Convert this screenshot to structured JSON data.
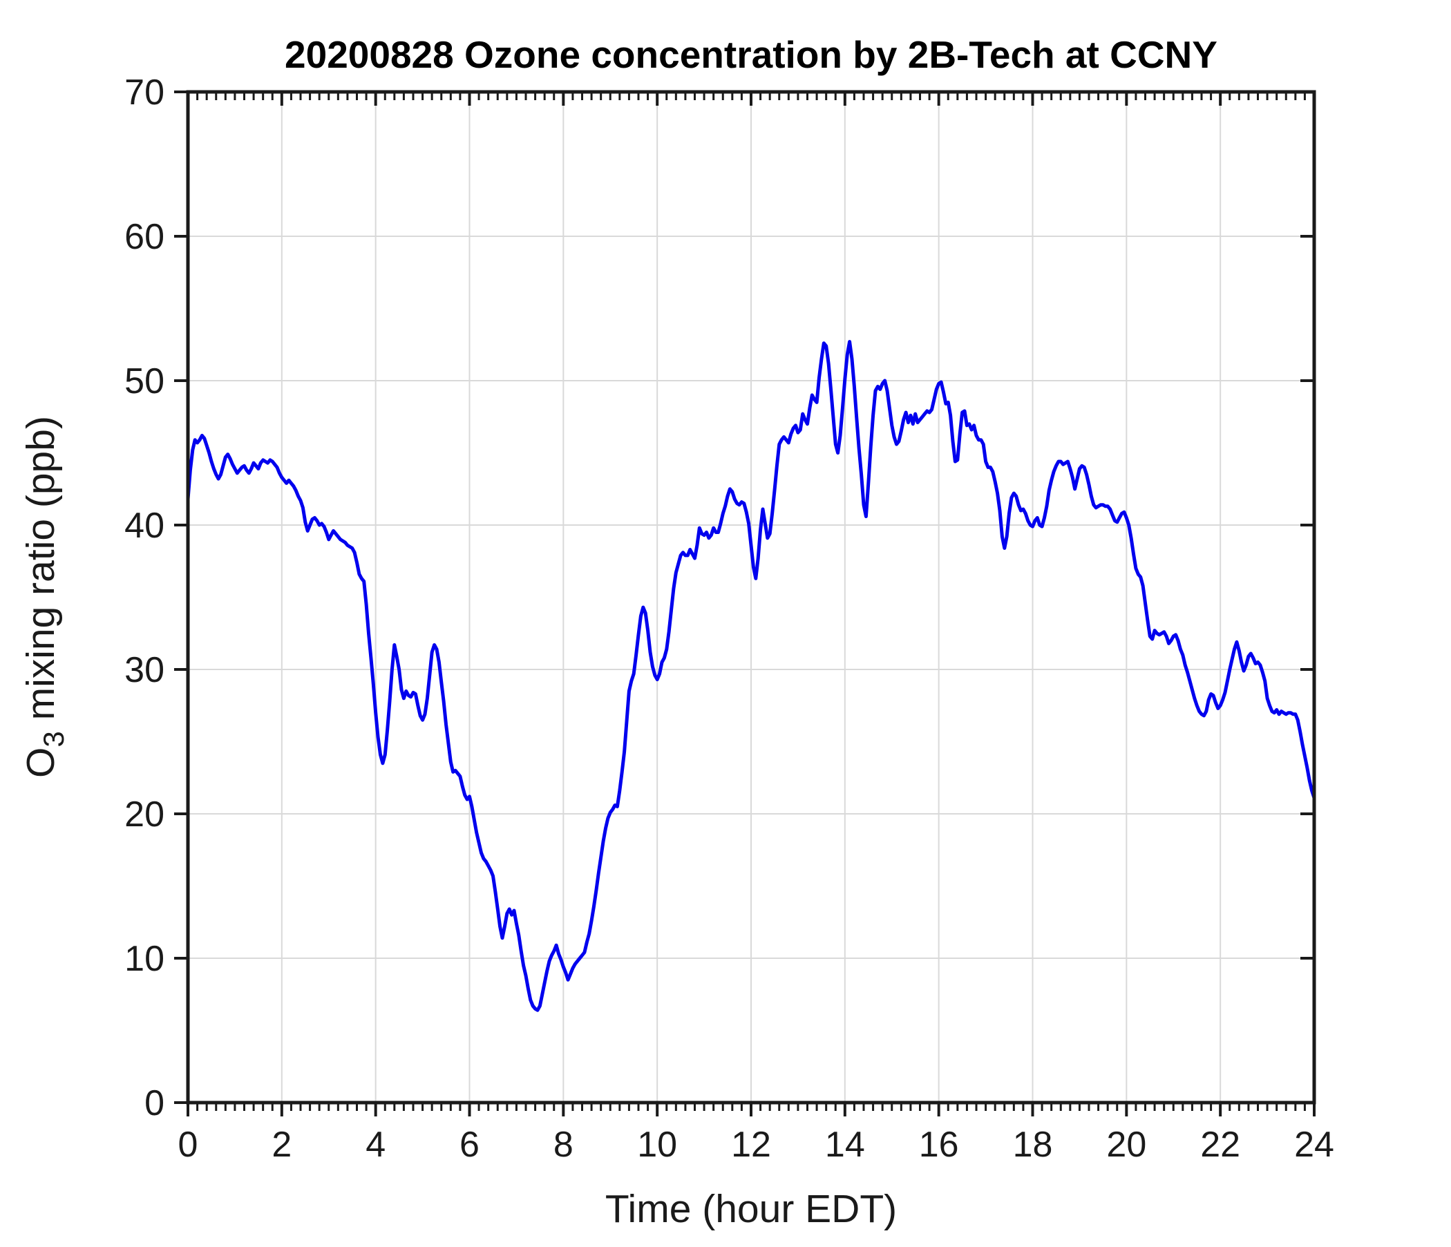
{
  "chart_data": {
    "type": "line",
    "title": "20200828 Ozone concentration by 2B-Tech at CCNY",
    "xlabel": "Time (hour EDT)",
    "ylabel": "O3 mixing ratio (ppb)",
    "ylabel_parts": {
      "base": "O",
      "sub": "3",
      "rest": " mixing ratio (ppb)"
    },
    "xlim": [
      0,
      24
    ],
    "ylim": [
      0,
      70
    ],
    "xticks": [
      0,
      2,
      4,
      6,
      8,
      10,
      12,
      14,
      16,
      18,
      20,
      22,
      24
    ],
    "yticks": [
      0,
      10,
      20,
      30,
      40,
      50,
      60,
      70
    ],
    "x_minor_step": 0.2,
    "grid": true,
    "legend_position": "none",
    "colors": {
      "line": "#0000ee",
      "grid": "#d9d9d9",
      "axis": "#1a1a1a",
      "text": "#1a1a1a",
      "title": "#000000"
    },
    "series": [
      {
        "name": "O3 mixing ratio",
        "t_start": 0,
        "t_step": 0.05,
        "values": [
          41.8,
          43.8,
          45.2,
          45.9,
          45.7,
          45.9,
          46.2,
          46.0,
          45.5,
          45.0,
          44.4,
          43.9,
          43.5,
          43.2,
          43.5,
          44.1,
          44.7,
          44.9,
          44.6,
          44.2,
          43.9,
          43.6,
          43.8,
          44.0,
          44.1,
          43.8,
          43.6,
          43.9,
          44.3,
          44.1,
          43.9,
          44.3,
          44.5,
          44.4,
          44.3,
          44.5,
          44.4,
          44.2,
          44.0,
          43.6,
          43.3,
          43.1,
          42.9,
          43.1,
          42.9,
          42.7,
          42.4,
          42.0,
          41.7,
          41.2,
          40.2,
          39.6,
          40.0,
          40.4,
          40.5,
          40.3,
          40.0,
          40.1,
          39.9,
          39.5,
          39.0,
          39.3,
          39.6,
          39.4,
          39.2,
          39.0,
          38.9,
          38.8,
          38.6,
          38.5,
          38.4,
          38.1,
          37.4,
          36.6,
          36.3,
          36.1,
          34.5,
          32.5,
          30.8,
          29.0,
          27.0,
          25.3,
          24.1,
          23.5,
          24.1,
          25.8,
          27.8,
          30.0,
          31.7,
          30.9,
          30.0,
          28.6,
          28.0,
          28.5,
          28.2,
          28.1,
          28.4,
          28.3,
          27.5,
          26.8,
          26.5,
          26.9,
          28.0,
          29.6,
          31.2,
          31.7,
          31.4,
          30.5,
          29.1,
          27.8,
          26.2,
          24.9,
          23.6,
          22.9,
          23.0,
          22.8,
          22.6,
          21.9,
          21.3,
          21.0,
          21.2,
          20.5,
          19.6,
          18.7,
          18.0,
          17.3,
          16.9,
          16.7,
          16.4,
          16.1,
          15.7,
          14.6,
          13.4,
          12.2,
          11.4,
          12.2,
          13.1,
          13.4,
          13.0,
          13.3,
          12.4,
          11.6,
          10.5,
          9.5,
          8.8,
          7.9,
          7.1,
          6.7,
          6.5,
          6.4,
          6.7,
          7.5,
          8.3,
          9.1,
          9.8,
          10.2,
          10.5,
          10.9,
          10.3,
          9.9,
          9.4,
          9.0,
          8.5,
          8.9,
          9.3,
          9.6,
          9.8,
          10.0,
          10.2,
          10.4,
          11.1,
          11.7,
          12.6,
          13.6,
          14.7,
          15.9,
          17.0,
          18.1,
          19.0,
          19.7,
          20.1,
          20.3,
          20.6,
          20.5,
          21.6,
          22.9,
          24.3,
          26.4,
          28.5,
          29.2,
          29.7,
          31.0,
          32.4,
          33.7,
          34.3,
          33.9,
          32.7,
          31.2,
          30.2,
          29.6,
          29.3,
          29.7,
          30.5,
          30.8,
          31.4,
          32.6,
          34.1,
          35.6,
          36.7,
          37.3,
          37.9,
          38.1,
          37.9,
          37.9,
          38.3,
          38.0,
          37.7,
          38.6,
          39.8,
          39.4,
          39.3,
          39.5,
          39.1,
          39.3,
          39.8,
          39.5,
          39.5,
          40.1,
          40.8,
          41.3,
          42.0,
          42.5,
          42.3,
          41.8,
          41.5,
          41.4,
          41.6,
          41.5,
          40.9,
          40.1,
          38.6,
          37.1,
          36.3,
          37.7,
          39.7,
          41.1,
          40.1,
          39.1,
          39.4,
          40.8,
          42.4,
          44.1,
          45.6,
          45.9,
          46.1,
          45.9,
          45.7,
          46.3,
          46.7,
          46.9,
          46.4,
          46.6,
          47.7,
          47.3,
          47.0,
          48.1,
          49.0,
          48.7,
          48.5,
          50.2,
          51.5,
          52.6,
          52.4,
          51.2,
          49.4,
          47.5,
          45.6,
          45.0,
          46.2,
          48.1,
          50.1,
          51.8,
          52.7,
          51.5,
          49.6,
          47.4,
          45.3,
          43.5,
          41.4,
          40.6,
          42.9,
          45.4,
          47.6,
          49.3,
          49.6,
          49.4,
          49.8,
          50.0,
          49.3,
          48.1,
          46.9,
          46.1,
          45.6,
          45.8,
          46.5,
          47.3,
          47.8,
          47.1,
          47.6,
          47.0,
          47.7,
          47.1,
          47.3,
          47.5,
          47.7,
          47.9,
          47.8,
          48.0,
          48.7,
          49.4,
          49.8,
          49.9,
          49.2,
          48.4,
          48.5,
          47.6,
          45.8,
          44.4,
          44.5,
          46.3,
          47.8,
          47.9,
          46.9,
          47.0,
          46.6,
          46.9,
          46.2,
          45.9,
          45.9,
          45.6,
          44.4,
          44.0,
          44.0,
          43.7,
          43.0,
          42.2,
          41.0,
          39.2,
          38.4,
          39.2,
          40.8,
          41.9,
          42.2,
          42.0,
          41.4,
          41.0,
          41.1,
          40.8,
          40.3,
          40.0,
          39.9,
          40.3,
          40.5,
          40.0,
          39.9,
          40.5,
          41.3,
          42.4,
          43.1,
          43.7,
          44.1,
          44.4,
          44.4,
          44.2,
          44.3,
          44.4,
          43.9,
          43.3,
          42.5,
          43.2,
          43.9,
          44.1,
          44.0,
          43.5,
          42.8,
          42.0,
          41.4,
          41.2,
          41.3,
          41.4,
          41.4,
          41.3,
          41.3,
          41.1,
          40.7,
          40.3,
          40.2,
          40.5,
          40.8,
          40.9,
          40.5,
          40.0,
          39.1,
          38.0,
          37.0,
          36.6,
          36.4,
          35.8,
          34.6,
          33.4,
          32.3,
          32.1,
          32.7,
          32.5,
          32.4,
          32.5,
          32.6,
          32.3,
          31.8,
          32.0,
          32.3,
          32.4,
          32.0,
          31.4,
          31.0,
          30.3,
          29.8,
          29.2,
          28.6,
          28.0,
          27.5,
          27.1,
          26.9,
          26.8,
          27.1,
          27.9,
          28.3,
          28.2,
          27.7,
          27.3,
          27.5,
          27.9,
          28.4,
          29.2,
          30.0,
          30.7,
          31.4,
          31.9,
          31.3,
          30.5,
          29.9,
          30.3,
          30.9,
          31.1,
          30.8,
          30.4,
          30.5,
          30.3,
          29.8,
          29.2,
          28.0,
          27.5,
          27.1,
          27.0,
          27.2,
          26.9,
          27.1,
          27.0,
          26.9,
          27.0,
          27.0,
          26.9,
          26.9,
          26.5,
          25.7,
          24.8,
          24.0,
          23.2,
          22.3,
          21.6,
          21.1
        ]
      }
    ]
  }
}
